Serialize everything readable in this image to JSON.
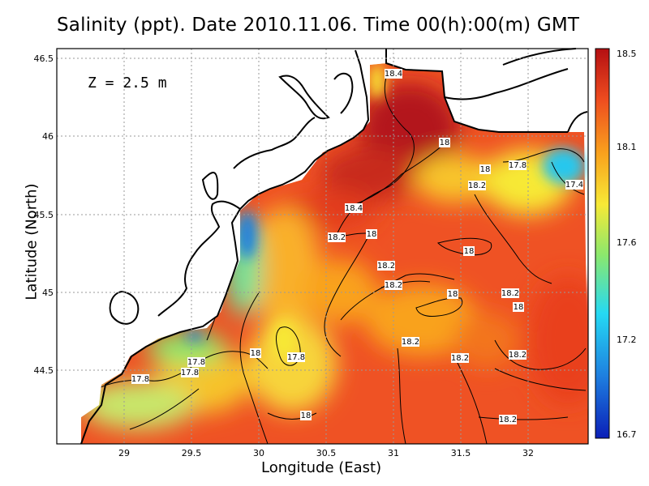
{
  "title": "Salinity (ppt). Date 2010.11.06. Time 00(h):00(m) GMT",
  "depth_label": "Z = 2.5 m",
  "axes": {
    "x_label": "Longitude (East)",
    "y_label": "Latitude (North)",
    "x_ticks": [
      "29",
      "29.5",
      "30",
      "30.5",
      "31",
      "31.5",
      "32"
    ],
    "y_ticks": [
      "46.5",
      "46",
      "45.5",
      "45",
      "44.5"
    ]
  },
  "colorbar": {
    "min": 16.7,
    "max": 18.5,
    "ticks": [
      "18.5",
      "18.1",
      "17.6",
      "17.2",
      "16.7"
    ],
    "gradient": [
      "#0b1fb7",
      "#1e7fe0",
      "#25d9f3",
      "#8be86d",
      "#f7e936",
      "#f9a21d",
      "#ee4c1f",
      "#b40f12"
    ]
  },
  "contour_labels": [
    "18.4",
    "18",
    "18",
    "17.8",
    "17.4",
    "18.2",
    "18.4",
    "18.2",
    "18",
    "18",
    "18.2",
    "18.2",
    "18",
    "18.2",
    "18",
    "18.2",
    "17.8",
    "18",
    "17.8",
    "17.8",
    "17.8",
    "18",
    "18.2",
    "18.2"
  ]
}
